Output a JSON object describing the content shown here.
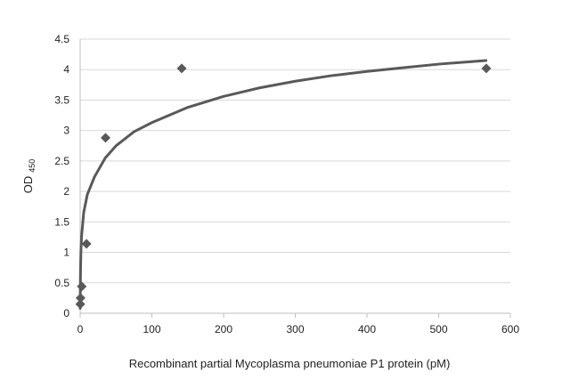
{
  "chart_data": {
    "type": "scatter",
    "title": "",
    "xlabel": "Recombinant partial Mycoplasma pneumoniae P1 protein (pM)",
    "ylabel": {
      "main": "OD",
      "subscript": "450"
    },
    "xlim": [
      0,
      600
    ],
    "ylim": [
      0,
      4.5
    ],
    "x_ticks": [
      "0",
      "100",
      "200",
      "300",
      "400",
      "500",
      "600"
    ],
    "y_ticks": [
      "0",
      "0.5",
      "1",
      "1.5",
      "2",
      "2.5",
      "3",
      "3.5",
      "4",
      "4.5"
    ],
    "grid": "horizontal",
    "legend": "none",
    "points": [
      {
        "x": 0.14,
        "y": 0.15
      },
      {
        "x": 0.55,
        "y": 0.25
      },
      {
        "x": 2.2,
        "y": 0.44
      },
      {
        "x": 8.8,
        "y": 1.14
      },
      {
        "x": 35.4,
        "y": 2.88
      },
      {
        "x": 141.6,
        "y": 4.02
      },
      {
        "x": 566.4,
        "y": 4.02
      }
    ],
    "trendline": {
      "type": "logarithmic",
      "x": [
        0.05,
        0.2,
        0.5,
        1,
        2,
        5,
        10,
        20,
        35,
        50,
        75,
        100,
        150,
        200,
        250,
        300,
        350,
        400,
        450,
        500,
        566
      ],
      "y": [
        0.08,
        0.42,
        0.7,
        1.0,
        1.27,
        1.66,
        1.95,
        2.24,
        2.55,
        2.75,
        2.98,
        3.13,
        3.38,
        3.56,
        3.7,
        3.81,
        3.9,
        3.97,
        4.03,
        4.09,
        4.15
      ]
    },
    "colors": {
      "marker": "#595959",
      "trendline": "#595959",
      "grid": "#d9d9d9",
      "axis": "#bfbfbf"
    }
  }
}
